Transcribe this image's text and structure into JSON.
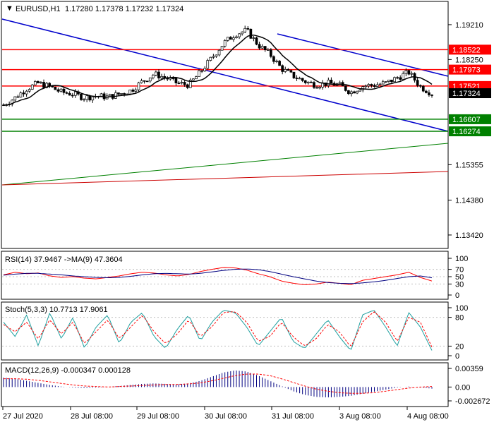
{
  "header": {
    "symbol_tf": "EURUSD,H1",
    "ohlc": "1.17280 1.17378 1.17232 1.17324"
  },
  "colors": {
    "level_line": "#ff0000",
    "support_line": "#008000",
    "channel_line": "#0000cc",
    "bull_candle": "#000000",
    "bear_candle": "#000000",
    "ma_line": "#000000",
    "rsi_line": "#000080",
    "rsi_signal": "#ff0000",
    "stoch_main": "#20a0a0",
    "stoch_signal": "#ff0000",
    "macd_hist": "#000080",
    "macd_signal": "#ff0000"
  },
  "price_axis": {
    "ticks": [
      "1.19210",
      "1.18250",
      "1.15355",
      "1.14380",
      "1.13420"
    ],
    "current_price": "1.17324",
    "levels": [
      {
        "price": "1.18522",
        "kind": "resistance"
      },
      {
        "price": "1.17973",
        "kind": "resistance"
      },
      {
        "price": "1.17521",
        "kind": "resistance"
      },
      {
        "price": "1.16607",
        "kind": "support"
      },
      {
        "price": "1.16274",
        "kind": "support"
      }
    ]
  },
  "rsi": {
    "label": "RSI(14) 37.9467 ->MA(9) 47.3604",
    "ticks": [
      "100",
      "70",
      "50",
      "30",
      "0"
    ]
  },
  "stoch": {
    "label": "Stoch(5,3,3) 10.7713 17.9061",
    "ticks": [
      "100",
      "80",
      "20",
      "0"
    ]
  },
  "macd": {
    "label": "MACD(12,26,9) -0.000347 0.000128",
    "ticks": [
      "0.00359",
      "0.00",
      "-0.002672"
    ]
  },
  "time_axis": {
    "labels": [
      "27 Jul 2020",
      "28 Jul 08:00",
      "29 Jul 08:00",
      "30 Jul 08:00",
      "31 Jul 08:00",
      "3 Aug 08:00",
      "4 Aug 08:00"
    ]
  },
  "chart_data": [
    {
      "type": "candlestick",
      "title": "EURUSD,H1",
      "ylim": [
        1.1305,
        1.1985
      ],
      "x": [
        "27 Jul 2020",
        "28 Jul 08:00",
        "29 Jul 08:00",
        "30 Jul 08:00",
        "31 Jul 08:00",
        "3 Aug 08:00",
        "4 Aug 08:00"
      ],
      "close_path": [
        1.17,
        1.172,
        1.1745,
        1.176,
        1.175,
        1.1735,
        1.173,
        1.172,
        1.1725,
        1.1722,
        1.173,
        1.174,
        1.1765,
        1.1785,
        1.1775,
        1.176,
        1.1755,
        1.179,
        1.183,
        1.187,
        1.1895,
        1.1905,
        1.1865,
        1.184,
        1.18,
        1.178,
        1.1765,
        1.1755,
        1.176,
        1.1755,
        1.1735,
        1.1752,
        1.1755,
        1.176,
        1.1775,
        1.179,
        1.175,
        1.1732
      ],
      "horizontal_levels": [
        1.18522,
        1.17973,
        1.17521,
        1.16607,
        1.16274
      ],
      "current_price": 1.17324,
      "legend": "none",
      "grid": false
    },
    {
      "type": "line",
      "title": "RSI(14)",
      "ylim": [
        0,
        100
      ],
      "levels": [
        70,
        50,
        30
      ],
      "series": [
        {
          "name": "RSI(14)",
          "value": 37.9467,
          "values": [
            55,
            62,
            58,
            60,
            52,
            48,
            50,
            46,
            44,
            48,
            52,
            58,
            62,
            60,
            55,
            52,
            56,
            64,
            70,
            75,
            74,
            68,
            58,
            50,
            38,
            32,
            28,
            30,
            35,
            32,
            28,
            40,
            45,
            50,
            55,
            62,
            48,
            38
          ]
        },
        {
          "name": "MA(9)",
          "value": 47.3604,
          "values": [
            54,
            57,
            59,
            59,
            57,
            55,
            52,
            50,
            48,
            47,
            48,
            51,
            55,
            58,
            59,
            58,
            57,
            59,
            63,
            67,
            70,
            71,
            69,
            64,
            57,
            50,
            44,
            38,
            34,
            32,
            31,
            33,
            36,
            40,
            45,
            50,
            52,
            47
          ]
        }
      ]
    },
    {
      "type": "line",
      "title": "Stoch(5,3,3)",
      "ylim": [
        0,
        100
      ],
      "levels": [
        80,
        20
      ],
      "series": [
        {
          "name": "Main",
          "value": 10.7713,
          "values": [
            70,
            40,
            85,
            20,
            90,
            35,
            80,
            15,
            60,
            85,
            25,
            70,
            90,
            40,
            15,
            55,
            85,
            30,
            70,
            95,
            90,
            60,
            20,
            50,
            80,
            30,
            15,
            45,
            75,
            40,
            10,
            85,
            95,
            60,
            20,
            90,
            60,
            11
          ]
        },
        {
          "name": "Signal",
          "value": 17.9061,
          "values": [
            65,
            50,
            70,
            35,
            75,
            45,
            70,
            25,
            50,
            75,
            35,
            60,
            85,
            50,
            25,
            45,
            75,
            40,
            60,
            90,
            92,
            70,
            30,
            40,
            70,
            40,
            20,
            35,
            65,
            50,
            18,
            70,
            92,
            70,
            30,
            80,
            70,
            18
          ]
        }
      ]
    },
    {
      "type": "bar",
      "title": "MACD(12,26,9)",
      "ylim": [
        -0.002672,
        0.00359
      ],
      "series": [
        {
          "name": "MACD",
          "value": -0.000347,
          "values": [
            0.0018,
            0.0016,
            0.0012,
            0.0008,
            0.0004,
            0.0001,
            -0.0001,
            -0.0002,
            -0.0001,
            0.0,
            0.0002,
            0.0004,
            0.0006,
            0.0007,
            0.0006,
            0.0005,
            0.0007,
            0.0012,
            0.002,
            0.0028,
            0.0032,
            0.003,
            0.0022,
            0.0012,
            0.0002,
            -0.0008,
            -0.0015,
            -0.0019,
            -0.002,
            -0.0019,
            -0.0017,
            -0.0013,
            -0.0009,
            -0.0005,
            -0.0001,
            0.0001,
            -0.0001,
            -0.0003
          ]
        },
        {
          "name": "Signal",
          "value": 0.000128,
          "values": [
            0.0016,
            0.0016,
            0.0015,
            0.0013,
            0.001,
            0.0007,
            0.0004,
            0.0002,
            0.0001,
            0.0,
            0.0001,
            0.0002,
            0.0003,
            0.0004,
            0.0005,
            0.0005,
            0.0006,
            0.0008,
            0.0012,
            0.0017,
            0.0022,
            0.0025,
            0.0025,
            0.0022,
            0.0016,
            0.0009,
            0.0002,
            -0.0004,
            -0.0008,
            -0.0011,
            -0.0012,
            -0.0012,
            -0.0011,
            -0.0008,
            -0.0005,
            -0.0002,
            0.0,
            0.0001
          ]
        }
      ]
    }
  ]
}
